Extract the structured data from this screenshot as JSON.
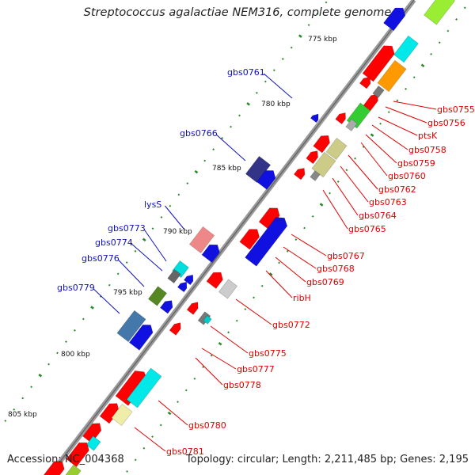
{
  "title": "Streptococcus agalactiae NEM316, complete genome",
  "accession": "Accession: NC_004368",
  "topology": "Topology: circular; Length: 2,211,485 bp; Genes: 2,195",
  "kbp_labels": [
    "775 kbp",
    "780 kbp",
    "785 kbp",
    "790 kbp",
    "795 kbp",
    "800 kbp",
    "805 kbp"
  ],
  "plus_strand_genes": [
    "gbs0761",
    "gbs0766",
    "lysS",
    "gbs0773",
    "gbs0774",
    "gbs0776",
    "gbs0779"
  ],
  "minus_strand_genes": [
    "gbs0755",
    "gbs0756",
    "ptsK",
    "gbs0758",
    "gbs0759",
    "gbs0760",
    "gbs0762",
    "gbs0763",
    "gbs0764",
    "gbs0765",
    "gbs0767",
    "gbs0768",
    "gbs0769",
    "ribH",
    "gbs0772",
    "gbs0775",
    "gbs0777",
    "gbs0778",
    "gbs0780",
    "gbs0781"
  ],
  "colors": {
    "plus_label": "#1010c0",
    "minus_label": "#e00000",
    "backbone": "#8a8a8a",
    "tick": "#2a8a2a"
  }
}
